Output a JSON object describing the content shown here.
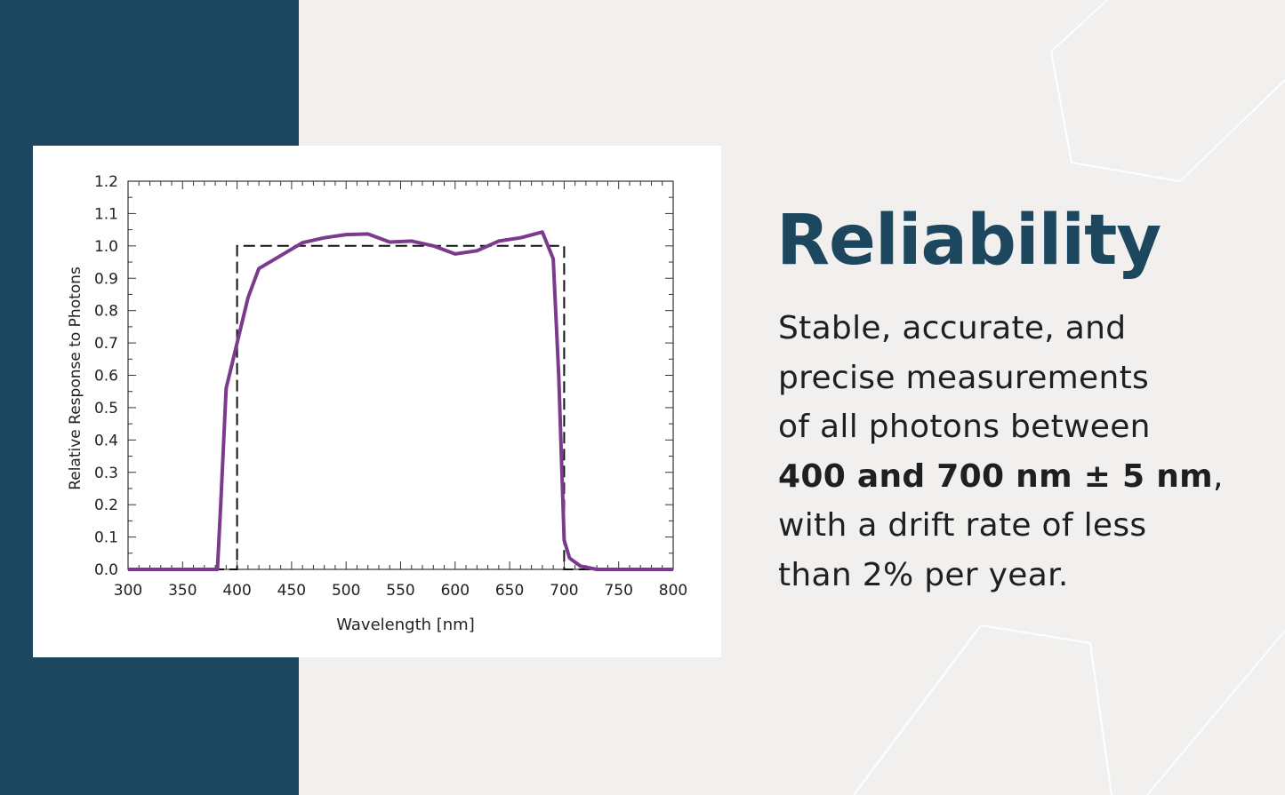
{
  "colors": {
    "band": "#1d465f",
    "background": "#f1f0ee",
    "heading": "#1d465f",
    "response_curve": "#7b3a8c",
    "reference_curve": "#111111"
  },
  "heading": "Reliability",
  "body": {
    "line1": "Stable, accurate, and",
    "line2": "precise measurements",
    "line3": "of all photons between",
    "line4_bold": "400 and 700 nm ± 5 nm",
    "line4_tail": ",",
    "line5": "with a drift rate of less",
    "line6": "than 2% per year."
  },
  "chart_data": {
    "type": "line",
    "title": "",
    "xlabel": "Wavelength [nm]",
    "ylabel": "Relative Response to Photons",
    "xlim": [
      300,
      800
    ],
    "ylim": [
      0,
      1.2
    ],
    "xticks": [
      300,
      350,
      400,
      450,
      500,
      550,
      600,
      650,
      700,
      750,
      800
    ],
    "yticks": [
      "0.0",
      "0.1",
      "0.2",
      "0.3",
      "0.4",
      "0.5",
      "0.6",
      "0.7",
      "0.8",
      "0.9",
      "1.0",
      "1.1",
      "1.2"
    ],
    "grid": false,
    "legend": "none",
    "series": [
      {
        "style": "solid",
        "points": [
          [
            300,
            0
          ],
          [
            350,
            0
          ],
          [
            380,
            0
          ],
          [
            382,
            0.0
          ],
          [
            385,
            0.2
          ],
          [
            390,
            0.56
          ],
          [
            395,
            0.63
          ],
          [
            400,
            0.7
          ],
          [
            410,
            0.84
          ],
          [
            420,
            0.93
          ],
          [
            440,
            0.97
          ],
          [
            460,
            1.01
          ],
          [
            480,
            1.025
          ],
          [
            500,
            1.035
          ],
          [
            520,
            1.037
          ],
          [
            540,
            1.012
          ],
          [
            560,
            1.015
          ],
          [
            580,
            1.0
          ],
          [
            600,
            0.975
          ],
          [
            620,
            0.985
          ],
          [
            640,
            1.015
          ],
          [
            660,
            1.025
          ],
          [
            680,
            1.043
          ],
          [
            690,
            0.96
          ],
          [
            695,
            0.6
          ],
          [
            698,
            0.3
          ],
          [
            700,
            0.09
          ],
          [
            705,
            0.035
          ],
          [
            715,
            0.01
          ],
          [
            730,
            0.0
          ],
          [
            800,
            0.0
          ]
        ]
      },
      {
        "style": "dashed",
        "points": [
          [
            300,
            0
          ],
          [
            400,
            0
          ],
          [
            400,
            1.0
          ],
          [
            700,
            1.0
          ],
          [
            700,
            0
          ],
          [
            800,
            0
          ]
        ]
      }
    ]
  }
}
